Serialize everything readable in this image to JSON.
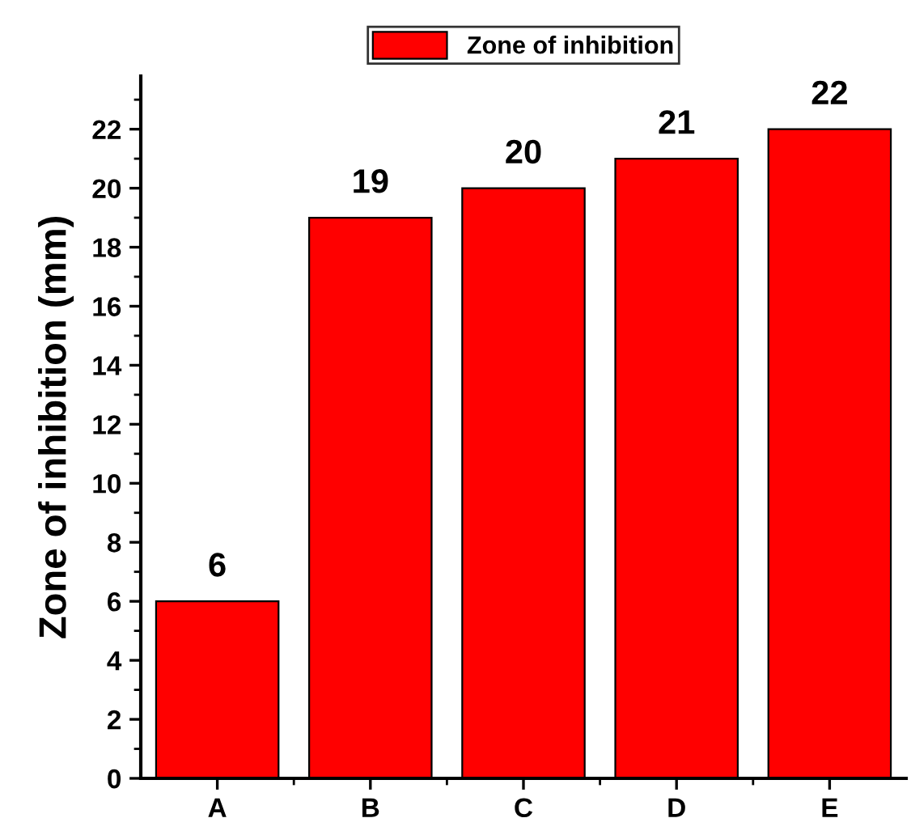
{
  "chart_data": {
    "type": "bar",
    "ylabel": "Zone of inhibition (mm)",
    "categories": [
      "A",
      "B",
      "C",
      "D",
      "E"
    ],
    "series": [
      {
        "name": "Zone of inhibition",
        "color": "#ff0000",
        "values": [
          6,
          19,
          20,
          21,
          22
        ]
      }
    ],
    "ylim": [
      0,
      23.8
    ],
    "yticks": [
      0,
      2,
      4,
      6,
      8,
      10,
      12,
      14,
      16,
      18,
      20,
      22
    ],
    "data_labels": true,
    "legend": "top",
    "grid": false
  }
}
